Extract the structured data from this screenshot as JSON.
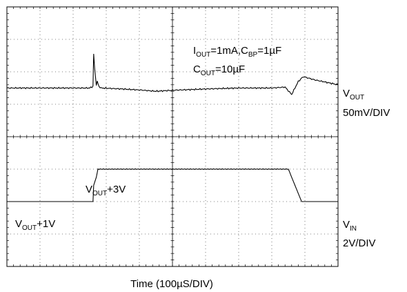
{
  "chart_data": {
    "type": "line",
    "xlabel": "Time (100µS/DIV)",
    "grid": true,
    "divisions": {
      "x": 10,
      "y": 8
    },
    "conditions": {
      "line1": {
        "i": "I",
        "i_sub": "OUT",
        "i_val": "=1mA,C",
        "c_sub": "BP",
        "c_val": "=1µF"
      },
      "line2": {
        "c": "C",
        "c_sub": "OUT",
        "c_val": "=10µF"
      }
    },
    "series": [
      {
        "channel": "V_OUT",
        "label": {
          "main": "V",
          "sub": "OUT",
          "scale": "50mV/DIV"
        },
        "baseline_div": 5.5,
        "points": [
          [
            0.0,
            0.0
          ],
          [
            1.0,
            0.0
          ],
          [
            2.5,
            0.0
          ],
          [
            2.6,
            0.05
          ],
          [
            2.62,
            1.05
          ],
          [
            2.65,
            0.6
          ],
          [
            2.7,
            0.1
          ],
          [
            2.73,
            0.2
          ],
          [
            2.78,
            0.05
          ],
          [
            2.85,
            0.0
          ],
          [
            3.5,
            -0.03
          ],
          [
            4.0,
            -0.06
          ],
          [
            4.5,
            -0.1
          ],
          [
            5.0,
            -0.07
          ],
          [
            6.0,
            -0.03
          ],
          [
            7.0,
            -0.0
          ],
          [
            8.0,
            0.0
          ],
          [
            8.4,
            0.03
          ],
          [
            8.6,
            -0.2
          ],
          [
            8.8,
            0.2
          ],
          [
            8.95,
            0.35
          ],
          [
            9.3,
            0.25
          ],
          [
            10.0,
            0.1
          ]
        ]
      },
      {
        "channel": "V_IN",
        "label": {
          "main": "V",
          "sub": "IN",
          "scale": "2V/DIV"
        },
        "baseline_div": 2.0,
        "points": [
          [
            0.0,
            0.0
          ],
          [
            2.6,
            0.0
          ],
          [
            2.62,
            0.5
          ],
          [
            2.7,
            0.75
          ],
          [
            2.75,
            1.0
          ],
          [
            8.5,
            1.0
          ],
          [
            8.9,
            0.0
          ],
          [
            10.0,
            0.0
          ]
        ],
        "level_labels": [
          {
            "main": "V",
            "sub": "OUT",
            "val": "+1V"
          },
          {
            "main": "V",
            "sub": "OUT",
            "val": "+3V"
          }
        ]
      }
    ]
  }
}
